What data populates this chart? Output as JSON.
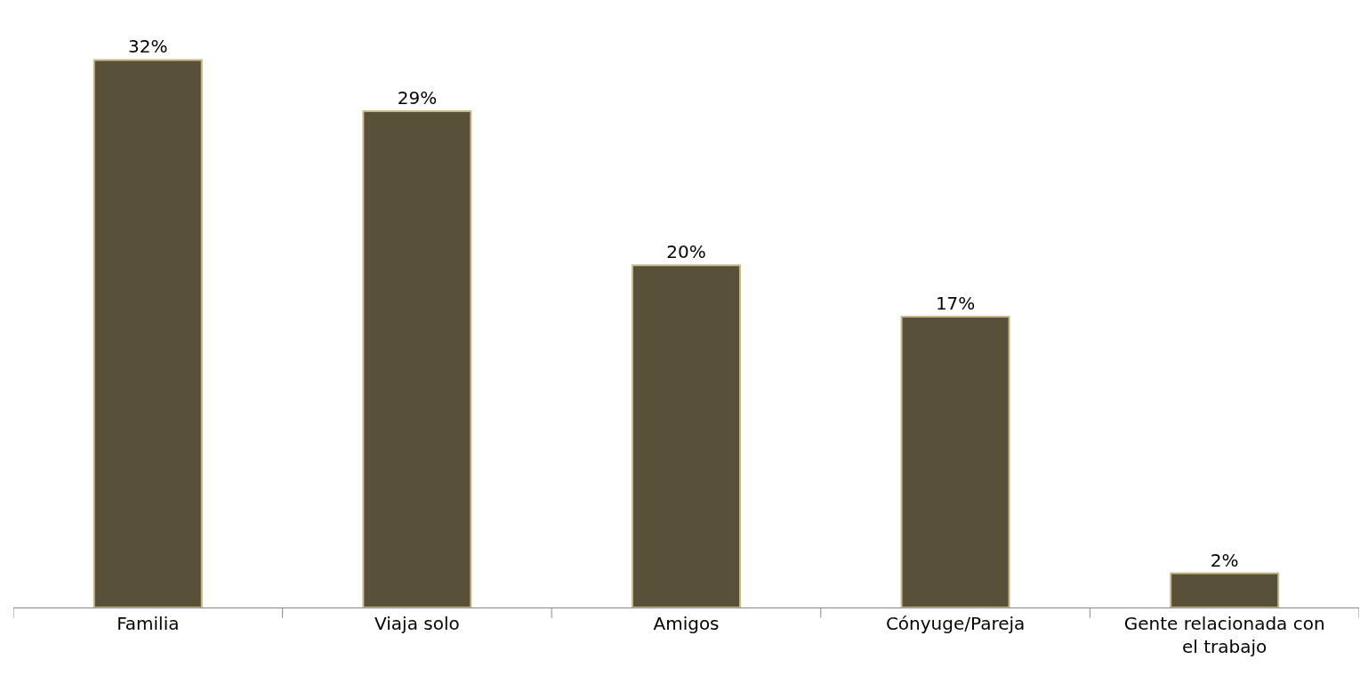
{
  "chart_data": {
    "type": "bar",
    "categories": [
      "Familia",
      "Viaja solo",
      "Amigos",
      "Cónyuge/Pareja",
      "Gente relacionada con el trabajo"
    ],
    "values": [
      32,
      29,
      20,
      17,
      2
    ],
    "value_labels": [
      "32%",
      "29%",
      "20%",
      "17%",
      "2%"
    ],
    "color": "#595039"
  }
}
